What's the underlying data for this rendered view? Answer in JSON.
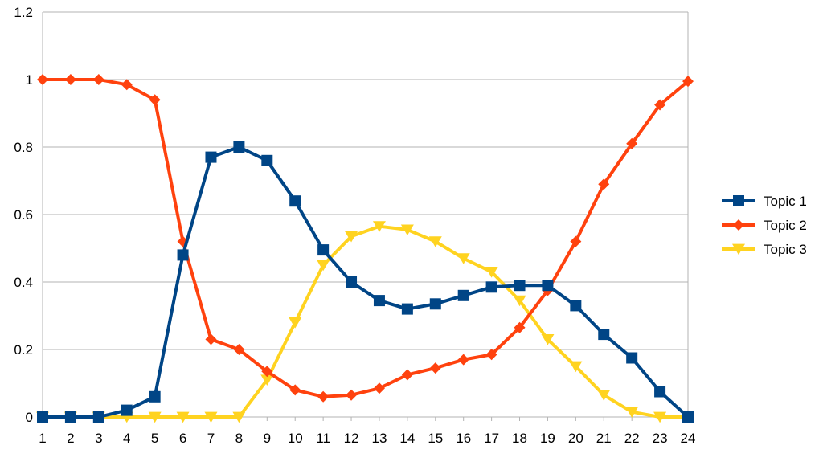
{
  "chart_data": {
    "type": "line",
    "title": "",
    "xlabel": "",
    "ylabel": "",
    "categories": [
      "1",
      "2",
      "3",
      "4",
      "5",
      "6",
      "7",
      "8",
      "9",
      "10",
      "11",
      "12",
      "13",
      "14",
      "15",
      "16",
      "17",
      "18",
      "19",
      "20",
      "21",
      "22",
      "23",
      "24"
    ],
    "ylim": [
      0,
      1.2
    ],
    "yticks": [
      "0",
      "0.2",
      "0.4",
      "0.6",
      "0.8",
      "1",
      "1.2"
    ],
    "ytick_values": [
      0,
      0.2,
      0.4,
      0.6,
      0.8,
      1.0,
      1.2
    ],
    "grid": true,
    "legend_position": "right",
    "series": [
      {
        "name": "Topic 1",
        "color": "#004586",
        "marker": "square",
        "values": [
          0.0,
          0.0,
          0.0,
          0.02,
          0.06,
          0.48,
          0.77,
          0.8,
          0.76,
          0.64,
          0.495,
          0.4,
          0.345,
          0.32,
          0.335,
          0.36,
          0.385,
          0.39,
          0.39,
          0.33,
          0.245,
          0.175,
          0.075,
          0.0
        ]
      },
      {
        "name": "Topic 2",
        "color": "#ff420e",
        "marker": "diamond",
        "values": [
          1.0,
          1.0,
          1.0,
          0.985,
          0.94,
          0.52,
          0.23,
          0.2,
          0.135,
          0.08,
          0.06,
          0.065,
          0.085,
          0.125,
          0.145,
          0.17,
          0.185,
          0.265,
          0.375,
          0.52,
          0.69,
          0.81,
          0.925,
          0.995
        ]
      },
      {
        "name": "Topic 3",
        "color": "#ffd320",
        "marker": "triangle-down",
        "values": [
          0.0,
          0.0,
          0.0,
          0.0,
          0.0,
          0.0,
          0.0,
          0.0,
          0.11,
          0.28,
          0.45,
          0.535,
          0.565,
          0.555,
          0.52,
          0.47,
          0.43,
          0.345,
          0.23,
          0.15,
          0.065,
          0.015,
          0.0,
          0.0
        ]
      }
    ]
  }
}
